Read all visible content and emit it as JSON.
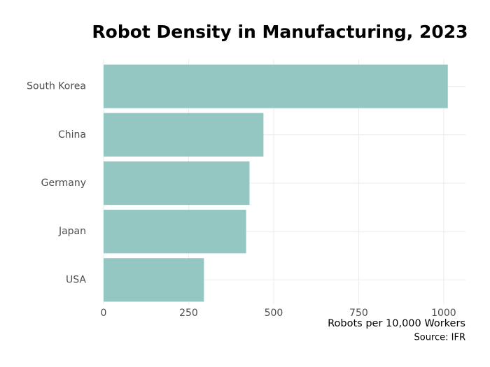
{
  "chart_data": {
    "type": "barh",
    "title": "Robot Density in Manufacturing, 2023",
    "categories": [
      "South Korea",
      "China",
      "Germany",
      "Japan",
      "USA"
    ],
    "values": [
      1012,
      470,
      429,
      419,
      295
    ],
    "color": "#8fc4bf",
    "xlabel": "Robots per 10,000 Workers",
    "caption": "Source: IFR",
    "xlim": [
      0,
      1064
    ],
    "xticks": [
      0,
      250,
      500,
      750,
      1000
    ],
    "grid": true
  }
}
